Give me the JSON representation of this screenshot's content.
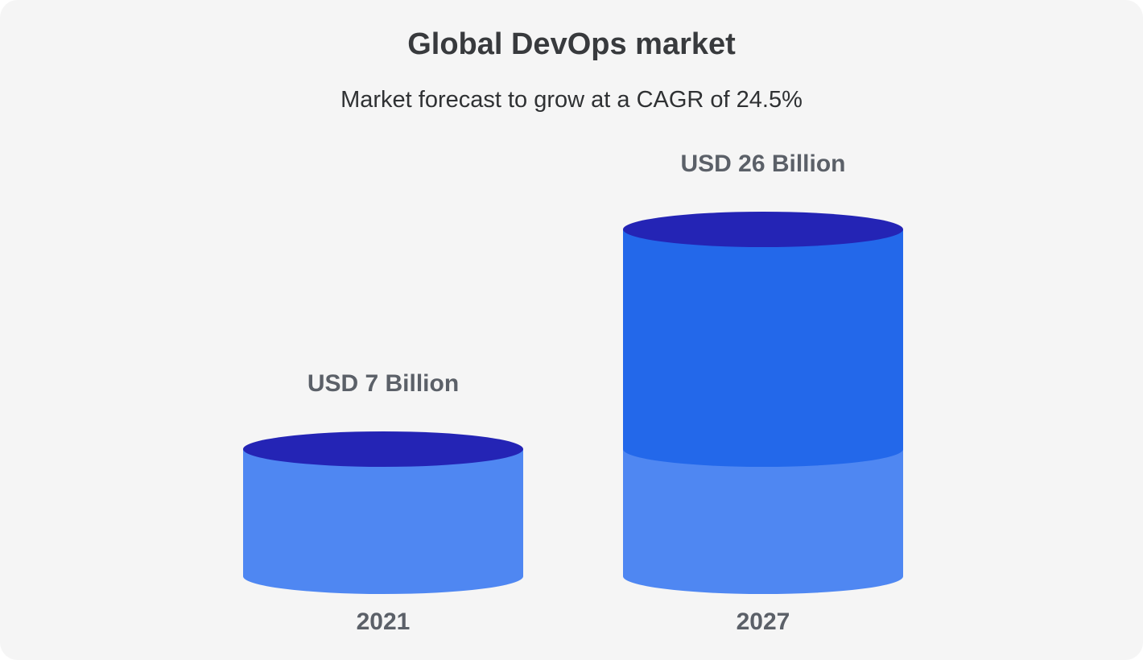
{
  "chart_data": {
    "type": "bar",
    "title": "Global DevOps market",
    "subtitle": "Market forecast to grow at a CAGR of 24.5%",
    "categories": [
      "2021",
      "2027"
    ],
    "values": [
      7,
      26
    ],
    "value_labels": [
      "USD 7 Billion",
      "USD 26 Billion"
    ],
    "ylim": [
      0,
      26
    ],
    "grid": false,
    "colors": {
      "body": "#4f87f2",
      "body_growth": "#2368ea",
      "top": "#2424b5",
      "label": "#5b6068"
    }
  }
}
